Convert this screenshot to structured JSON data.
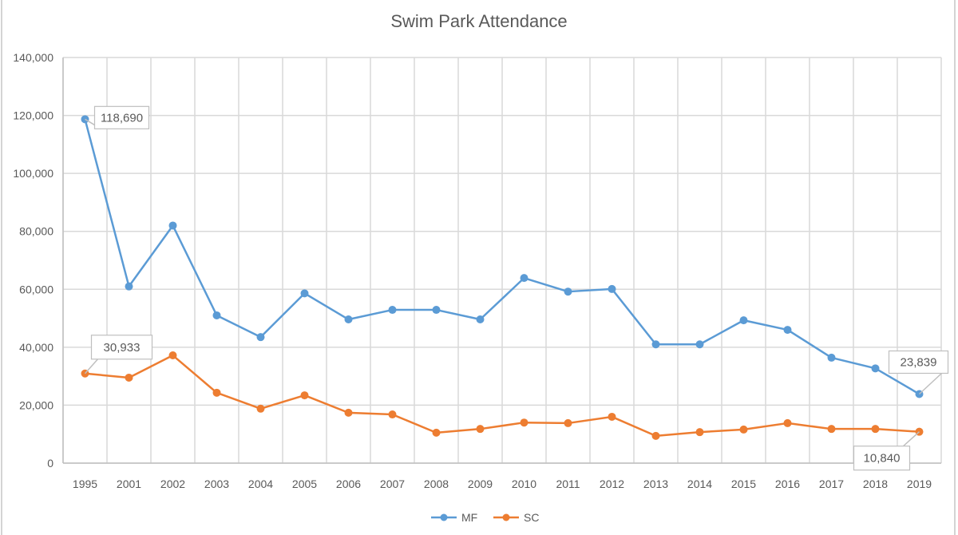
{
  "chart_data": {
    "type": "line",
    "title": "Swim Park Attendance",
    "xlabel": "",
    "ylabel": "",
    "categories": [
      "1995",
      "2001",
      "2002",
      "2003",
      "2004",
      "2005",
      "2006",
      "2007",
      "2008",
      "2009",
      "2010",
      "2011",
      "2012",
      "2013",
      "2014",
      "2015",
      "2016",
      "2017",
      "2018",
      "2019"
    ],
    "series": [
      {
        "name": "MF",
        "color": "#5b9bd5",
        "values": [
          118690,
          61000,
          82000,
          51000,
          43500,
          58600,
          49600,
          52900,
          52900,
          49600,
          63900,
          59200,
          60100,
          41000,
          41000,
          49300,
          46000,
          36400,
          32700,
          23839
        ]
      },
      {
        "name": "SC",
        "color": "#ed7d31",
        "values": [
          30933,
          29500,
          37200,
          24300,
          18800,
          23400,
          17400,
          16800,
          10500,
          11800,
          14000,
          13800,
          16000,
          9400,
          10700,
          11600,
          13800,
          11800,
          11800,
          10840
        ]
      }
    ],
    "ylim": [
      0,
      140000
    ],
    "yticks": [
      0,
      20000,
      40000,
      60000,
      80000,
      100000,
      120000,
      140000
    ],
    "ytick_labels": [
      "0",
      "20,000",
      "40,000",
      "60,000",
      "80,000",
      "100,000",
      "120,000",
      "140,000"
    ],
    "grid": true,
    "legend": {
      "position": "bottom",
      "entries": [
        "MF",
        "SC"
      ]
    },
    "data_labels": [
      {
        "series": "MF",
        "category": "1995",
        "text": "118,690"
      },
      {
        "series": "SC",
        "category": "1995",
        "text": "30,933"
      },
      {
        "series": "MF",
        "category": "2019",
        "text": "23,839"
      },
      {
        "series": "SC",
        "category": "2019",
        "text": "10,840"
      }
    ]
  }
}
